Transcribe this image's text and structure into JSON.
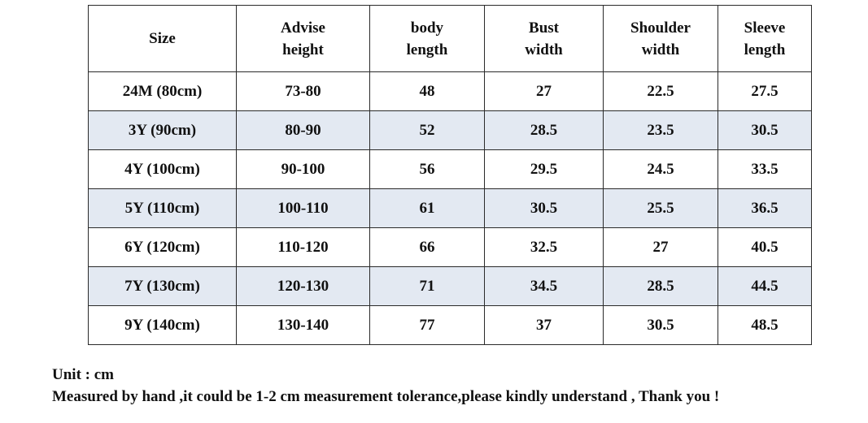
{
  "table": {
    "headers": [
      [
        "Size"
      ],
      [
        "Advise",
        "height"
      ],
      [
        "body",
        "length"
      ],
      [
        "Bust",
        "width"
      ],
      [
        "Shoulder",
        "width"
      ],
      [
        "Sleeve",
        "length"
      ]
    ],
    "rows": [
      [
        "24M (80cm)",
        "73-80",
        "48",
        "27",
        "22.5",
        "27.5"
      ],
      [
        "3Y (90cm)",
        "80-90",
        "52",
        "28.5",
        "23.5",
        "30.5"
      ],
      [
        "4Y (100cm)",
        "90-100",
        "56",
        "29.5",
        "24.5",
        "33.5"
      ],
      [
        "5Y (110cm)",
        "100-110",
        "61",
        "30.5",
        "25.5",
        "36.5"
      ],
      [
        "6Y (120cm)",
        "110-120",
        "66",
        "32.5",
        "27",
        "40.5"
      ],
      [
        "7Y (130cm)",
        "120-130",
        "71",
        "34.5",
        "28.5",
        "44.5"
      ],
      [
        "9Y (140cm)",
        "130-140",
        "77",
        "37",
        "30.5",
        "48.5"
      ]
    ],
    "shaded_row_color": "#e3e9f2",
    "border_color": "#2a2a2a"
  },
  "notes": {
    "unit": "Unit : cm",
    "tolerance": "Measured by hand ,it could be 1-2 cm measurement tolerance,please kindly understand , Thank you !"
  }
}
